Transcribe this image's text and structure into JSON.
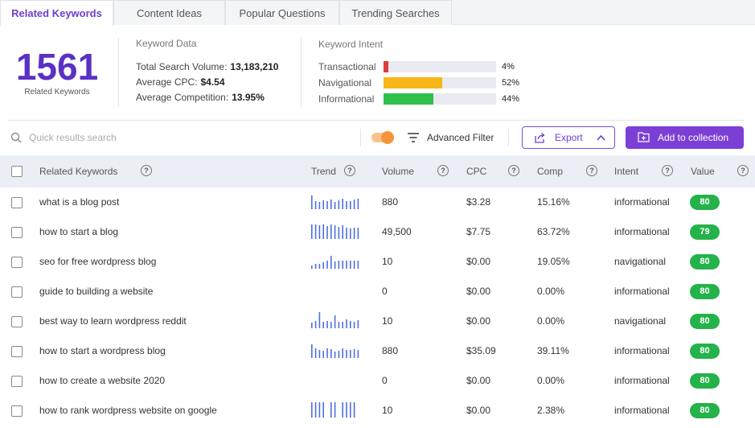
{
  "tabs": [
    "Related Keywords",
    "Content Ideas",
    "Popular Questions",
    "Trending Searches"
  ],
  "summary": {
    "count": "1561",
    "count_label": "Related Keywords"
  },
  "keyword_data": {
    "title": "Keyword Data",
    "search_volume_label": "Total Search Volume:",
    "search_volume": "13,183,210",
    "cpc_label": "Average CPC:",
    "cpc": "$4.54",
    "competition_label": "Average Competition:",
    "competition": "13.95%"
  },
  "keyword_intent": {
    "title": "Keyword Intent",
    "items": [
      {
        "label": "Transactional",
        "pct": "4%",
        "value": 0.04,
        "color": "#e03a3a"
      },
      {
        "label": "Navigational",
        "pct": "52%",
        "value": 0.52,
        "color": "#f8b718"
      },
      {
        "label": "Informational",
        "pct": "44%",
        "value": 0.44,
        "color": "#2ec04a"
      }
    ]
  },
  "toolbar": {
    "search_placeholder": "Quick results search",
    "filter_label": "Advanced Filter",
    "export_label": "Export",
    "add_label": "Add to collection"
  },
  "table": {
    "columns": [
      "Related Keywords",
      "Trend",
      "Volume",
      "CPC",
      "Comp",
      "Intent",
      "Value"
    ],
    "rows": [
      {
        "keyword": "what is a blog post",
        "volume": "880",
        "cpc": "$3.28",
        "comp": "15.16%",
        "intent": "informational",
        "value": "80",
        "trend": [
          0.85,
          0.5,
          0.45,
          0.55,
          0.5,
          0.6,
          0.45,
          0.55,
          0.65,
          0.5,
          0.5,
          0.6,
          0.65
        ]
      },
      {
        "keyword": "how to start a blog",
        "volume": "49,500",
        "cpc": "$7.75",
        "comp": "63.72%",
        "intent": "informational",
        "value": "79",
        "trend": [
          0.9,
          0.9,
          0.85,
          0.9,
          0.8,
          0.9,
          0.85,
          0.75,
          0.85,
          0.7,
          0.65,
          0.7,
          0.7
        ]
      },
      {
        "keyword": "seo for free wordpress blog",
        "volume": "10",
        "cpc": "$0.00",
        "comp": "19.05%",
        "intent": "navigational",
        "value": "80",
        "trend": [
          0.2,
          0.3,
          0.3,
          0.4,
          0.5,
          0.8,
          0.45,
          0.5,
          0.5,
          0.5,
          0.5,
          0.5,
          0.5
        ]
      },
      {
        "keyword": "guide to building a website",
        "volume": "0",
        "cpc": "$0.00",
        "comp": "0.00%",
        "intent": "informational",
        "value": "80",
        "trend": []
      },
      {
        "keyword": "best way to learn wordpress reddit",
        "volume": "10",
        "cpc": "$0.00",
        "comp": "0.00%",
        "intent": "navigational",
        "value": "80",
        "trend": [
          0.35,
          0.45,
          1.0,
          0.4,
          0.45,
          0.4,
          0.8,
          0.4,
          0.4,
          0.55,
          0.45,
          0.4,
          0.5
        ]
      },
      {
        "keyword": "how to start a wordpress blog",
        "volume": "880",
        "cpc": "$35.09",
        "comp": "39.11%",
        "intent": "informational",
        "value": "80",
        "trend": [
          0.85,
          0.6,
          0.5,
          0.45,
          0.6,
          0.55,
          0.4,
          0.45,
          0.6,
          0.5,
          0.5,
          0.55,
          0.5
        ]
      },
      {
        "keyword": "how to create a website 2020",
        "volume": "0",
        "cpc": "$0.00",
        "comp": "0.00%",
        "intent": "informational",
        "value": "80",
        "trend": []
      },
      {
        "keyword": "how to rank wordpress website on google",
        "volume": "10",
        "cpc": "$0.00",
        "comp": "2.38%",
        "intent": "informational",
        "value": "80",
        "trend": [
          0.95,
          0.95,
          0.95,
          0.95,
          0.0,
          0.95,
          0.95,
          0.0,
          0.95,
          0.95,
          0.95,
          0.95,
          0.0
        ]
      }
    ]
  },
  "colors": {
    "accent": "#7c3fd6",
    "value_badge": "#24b24a",
    "trend_bar": "#4f6fe0"
  }
}
